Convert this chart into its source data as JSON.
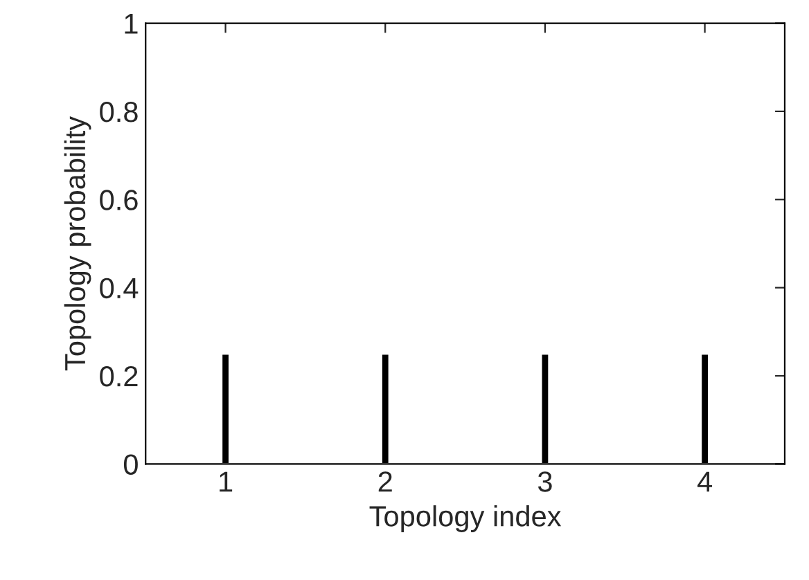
{
  "chart_data": {
    "type": "bar",
    "xlabel": "Topology index",
    "ylabel": "Topology probability",
    "x": [
      1,
      2,
      3,
      4
    ],
    "values": [
      0.25,
      0.25,
      0.25,
      0.25
    ],
    "color": "#000000",
    "xlim": [
      0.5,
      4.5
    ],
    "xticks": [
      1,
      2,
      3,
      4
    ],
    "ylim": [
      0,
      1
    ],
    "yticks": [
      0,
      0.2,
      0.4,
      0.6,
      0.8,
      1
    ],
    "grid": false,
    "legend": false
  }
}
